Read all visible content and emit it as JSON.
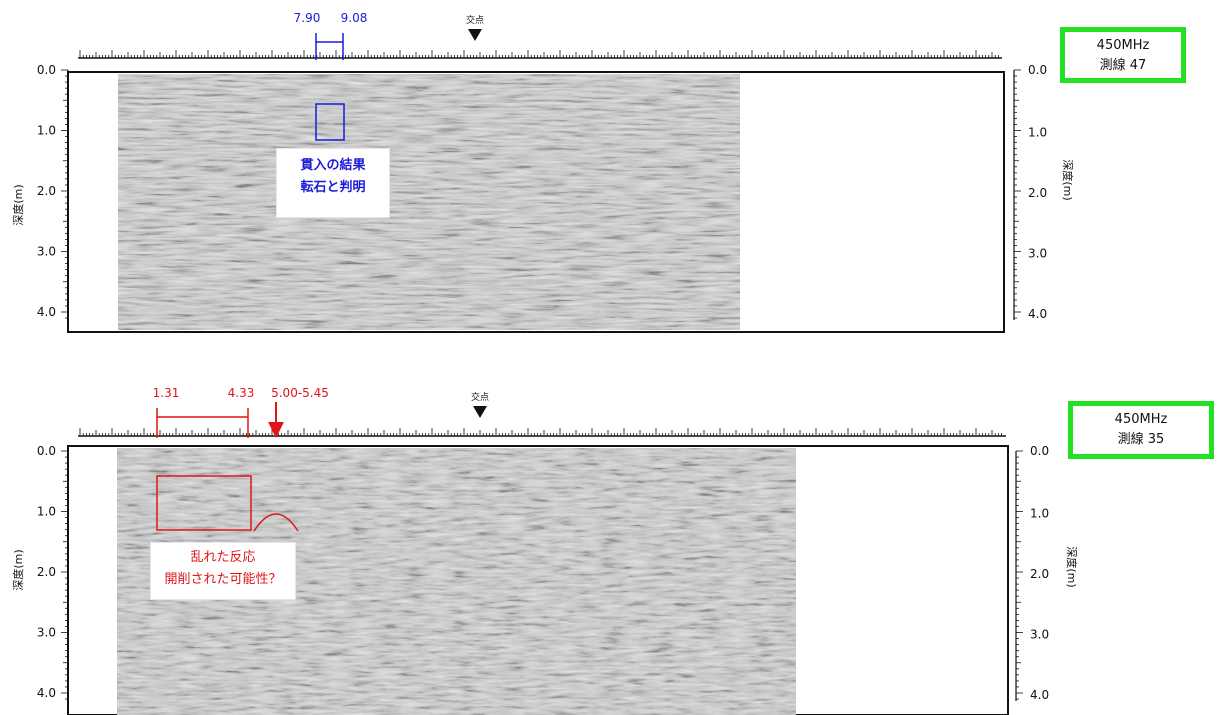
{
  "panels": [
    {
      "id": "top",
      "label_box": {
        "line1": "450MHz",
        "line2": "測線 47"
      },
      "left_axis_title": "深度(m)",
      "right_axis_title": "深度(m)",
      "depth_ticks": [
        "0.0",
        "1.0",
        "2.0",
        "3.0",
        "4.0"
      ],
      "intersection_label": "交点",
      "range_labels": [
        "7.90",
        "9.08"
      ],
      "callout": {
        "line1": "貫入の結果",
        "line2": "転石と判明"
      },
      "color": "#1a1adb"
    },
    {
      "id": "bottom",
      "label_box": {
        "line1": "450MHz",
        "line2": "測線 35"
      },
      "left_axis_title": "深度(m)",
      "right_axis_title": "深度(m)",
      "depth_ticks": [
        "0.0",
        "1.0",
        "2.0",
        "3.0",
        "4.0"
      ],
      "intersection_label": "交点",
      "range_labels": [
        "1.31",
        "4.33"
      ],
      "point_label": "5.00-5.45",
      "callout": {
        "line1": "乱れた反応",
        "line2": "開削された可能性？"
      },
      "color": "#e01616"
    }
  ]
}
